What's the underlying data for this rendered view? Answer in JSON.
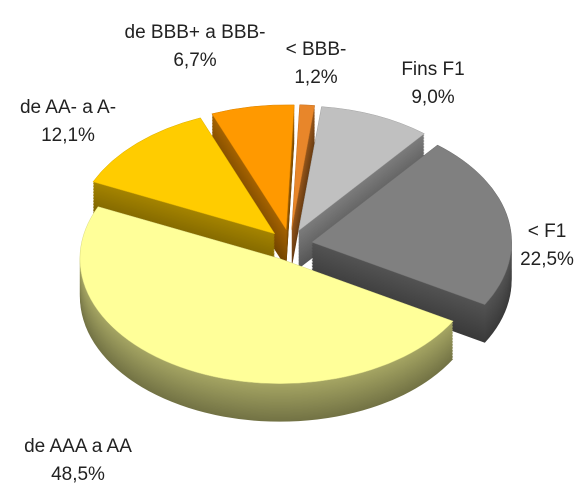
{
  "chart_data": {
    "type": "pie",
    "categories": [
      "de AAA a AA",
      "de AA- a A-",
      "de BBB+ a BBB-",
      "< BBB-",
      "Fins F1",
      "< F1"
    ],
    "values": [
      48.5,
      12.1,
      6.7,
      1.2,
      9.0,
      22.5
    ],
    "value_labels": [
      "48,5%",
      "12,1%",
      "6,7%",
      "1,2%",
      "9,0%",
      "22,5%"
    ],
    "colors": [
      "#ffff99",
      "#ffcc00",
      "#ff9900",
      "#e8862a",
      "#c0c0c0",
      "#808080"
    ]
  }
}
